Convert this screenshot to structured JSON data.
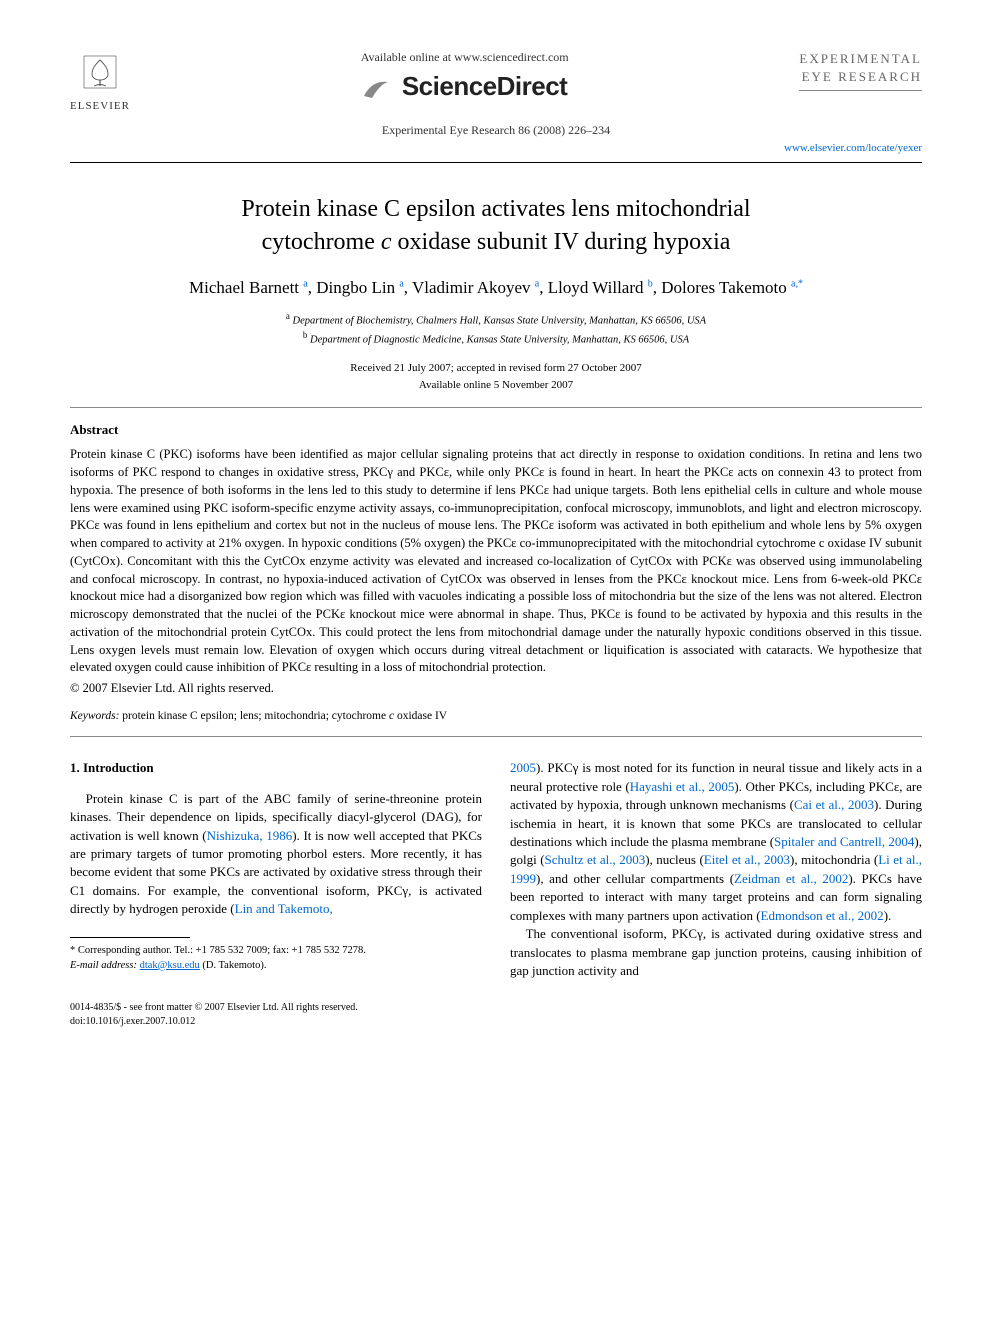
{
  "header": {
    "available_online": "Available online at www.sciencedirect.com",
    "brand": "ScienceDirect",
    "citation": "Experimental Eye Research 86 (2008) 226–234",
    "journal_brand_line1": "EXPERIMENTAL",
    "journal_brand_line2": "EYE RESEARCH",
    "journal_url": "www.elsevier.com/locate/yexer",
    "publisher_name": "ELSEVIER"
  },
  "title": {
    "line1": "Protein kinase C epsilon activates lens mitochondrial",
    "line2_pre": "cytochrome ",
    "line2_ital": "c",
    "line2_post": " oxidase subunit IV during hypoxia"
  },
  "authors": [
    {
      "name": "Michael Barnett",
      "aff": "a",
      "corr": false
    },
    {
      "name": "Dingbo Lin",
      "aff": "a",
      "corr": false
    },
    {
      "name": "Vladimir Akoyev",
      "aff": "a",
      "corr": false
    },
    {
      "name": "Lloyd Willard",
      "aff": "b",
      "corr": false
    },
    {
      "name": "Dolores Takemoto",
      "aff": "a",
      "corr": true
    }
  ],
  "affiliations": {
    "a": "Department of Biochemistry, Chalmers Hall, Kansas State University, Manhattan, KS 66506, USA",
    "b": "Department of Diagnostic Medicine, Kansas State University, Manhattan, KS 66506, USA"
  },
  "dates": {
    "received": "Received 21 July 2007; accepted in revised form 27 October 2007",
    "online": "Available online 5 November 2007"
  },
  "abstract": {
    "heading": "Abstract",
    "body": "Protein kinase C (PKC) isoforms have been identified as major cellular signaling proteins that act directly in response to oxidation conditions. In retina and lens two isoforms of PKC respond to changes in oxidative stress, PKCγ and PKCε, while only PKCε is found in heart. In heart the PKCε acts on connexin 43 to protect from hypoxia. The presence of both isoforms in the lens led to this study to determine if lens PKCε had unique targets. Both lens epithelial cells in culture and whole mouse lens were examined using PKC isoform-specific enzyme activity assays, co-immunoprecipitation, confocal microscopy, immunoblots, and light and electron microscopy. PKCε was found in lens epithelium and cortex but not in the nucleus of mouse lens. The PKCε isoform was activated in both epithelium and whole lens by 5% oxygen when compared to activity at 21% oxygen. In hypoxic conditions (5% oxygen) the PKCε co-immunoprecipitated with the mitochondrial cytochrome c oxidase IV subunit (CytCOx). Concomitant with this the CytCOx enzyme activity was elevated and increased co-localization of CytCOx with PCKε was observed using immunolabeling and confocal microscopy. In contrast, no hypoxia-induced activation of CytCOx was observed in lenses from the PKCε knockout mice. Lens from 6-week-old PKCε knockout mice had a disorganized bow region which was filled with vacuoles indicating a possible loss of mitochondria but the size of the lens was not altered. Electron microscopy demonstrated that the nuclei of the PCKε knockout mice were abnormal in shape. Thus, PKCε is found to be activated by hypoxia and this results in the activation of the mitochondrial protein CytCOx. This could protect the lens from mitochondrial damage under the naturally hypoxic conditions observed in this tissue. Lens oxygen levels must remain low. Elevation of oxygen which occurs during vitreal detachment or liquification is associated with cataracts. We hypothesize that elevated oxygen could cause inhibition of PKCε resulting in a loss of mitochondrial protection.",
    "copyright": "© 2007 Elsevier Ltd. All rights reserved."
  },
  "keywords": {
    "label": "Keywords:",
    "text": " protein kinase C epsilon; lens; mitochondria; cytochrome c oxidase IV"
  },
  "intro": {
    "heading": "1. Introduction",
    "left_p1_a": "Protein kinase C is part of the ABC family of serine-threonine protein kinases. Their dependence on lipids, specifically diacyl-glycerol (DAG), for activation is well known (",
    "left_p1_c1": "Nishizuka, 1986",
    "left_p1_b": "). It is now well accepted that PKCs are primary targets of tumor promoting phorbol esters. More recently, it has become evident that some PKCs are activated by oxidative stress through their C1 domains. For example, the conventional isoform, PKCγ, is activated directly by hydrogen peroxide (",
    "left_p1_c2": "Lin and Takemoto,",
    "right_p1_a": "2005",
    "right_p1_b": "). PKCγ is most noted for its function in neural tissue and likely acts in a neural protective role (",
    "right_p1_c1": "Hayashi et al., 2005",
    "right_p1_c": "). Other PKCs, including PKCε, are activated by hypoxia, through unknown mechanisms (",
    "right_p1_c2": "Cai et al., 2003",
    "right_p1_d": "). During ischemia in heart, it is known that some PKCs are translocated to cellular destinations which include the plasma membrane (",
    "right_p1_c3": "Spitaler and Cantrell, 2004",
    "right_p1_e": "), golgi (",
    "right_p1_c4": "Schultz et al., 2003",
    "right_p1_f": "), nucleus (",
    "right_p1_c5": "Eitel et al., 2003",
    "right_p1_g": "), mitochondria (",
    "right_p1_c6": "Li et al., 1999",
    "right_p1_h": "), and other cellular compartments (",
    "right_p1_c7": "Zeidman et al., 2002",
    "right_p1_i": "). PKCs have been reported to interact with many target proteins and can form signaling complexes with many partners upon activation (",
    "right_p1_c8": "Edmondson et al., 2002",
    "right_p1_j": ").",
    "right_p2": "The conventional isoform, PKCγ, is activated during oxidative stress and translocates to plasma membrane gap junction proteins, causing inhibition of gap junction activity and"
  },
  "footnote": {
    "corr": "* Corresponding author. Tel.: +1 785 532 7009; fax: +1 785 532 7278.",
    "email_label": "E-mail address:",
    "email": "dtak@ksu.edu",
    "email_name": " (D. Takemoto)."
  },
  "footer": {
    "front_matter": "0014-4835/$ - see front matter © 2007 Elsevier Ltd. All rights reserved.",
    "doi": "doi:10.1016/j.exer.2007.10.012"
  },
  "colors": {
    "link": "#0066cc",
    "text": "#000000",
    "muted": "#666666"
  }
}
